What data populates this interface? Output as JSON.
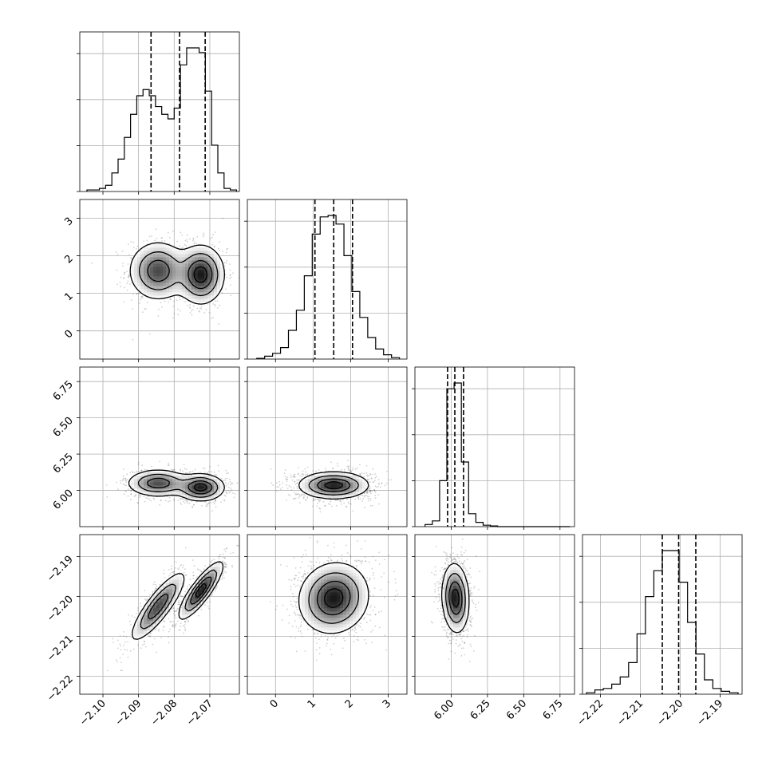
{
  "chart_data": {
    "type": "corner",
    "grid": true,
    "parameters": [
      {
        "range": [
          -2.1065,
          -2.0617
        ],
        "ticks": [
          -2.1,
          -2.09,
          -2.08,
          -2.07
        ],
        "tick_labels": [
          "−2.10",
          "−2.09",
          "−2.08",
          "−2.07"
        ],
        "quantiles": [
          -2.0865,
          -2.0785,
          -2.0713
        ],
        "histogram": [
          0.01,
          0.01,
          0.02,
          0.04,
          0.12,
          0.21,
          0.35,
          0.5,
          0.62,
          0.66,
          0.62,
          0.55,
          0.5,
          0.47,
          0.54,
          0.82,
          0.93,
          0.93,
          0.9,
          0.65,
          0.3,
          0.12,
          0.02,
          0.01
        ],
        "modes": [
          {
            "center": -2.0845,
            "sd": 0.0045,
            "weight": 0.45
          },
          {
            "center": -2.0725,
            "sd": 0.0035,
            "weight": 0.55
          }
        ]
      },
      {
        "range": [
          -0.75,
          3.5
        ],
        "ticks": [
          0,
          1,
          2,
          3
        ],
        "tick_labels": [
          "0",
          "1",
          "2",
          "3"
        ],
        "quantiles": [
          1.05,
          1.55,
          2.05
        ],
        "histogram": [
          0.005,
          0.02,
          0.04,
          0.08,
          0.2,
          0.34,
          0.58,
          0.87,
          0.99,
          1.0,
          0.94,
          0.72,
          0.47,
          0.29,
          0.15,
          0.07,
          0.03,
          0.01
        ],
        "modes": [
          {
            "center": 1.55,
            "sd": 0.48,
            "weight": 1
          }
        ]
      },
      {
        "range": [
          5.75,
          6.85
        ],
        "ticks": [
          6.0,
          6.25,
          6.5,
          6.75
        ],
        "tick_labels": [
          "6.00",
          "6.25",
          "6.50",
          "6.75"
        ],
        "quantiles": [
          5.975,
          6.025,
          6.085
        ],
        "histogram": [
          0.015,
          0.04,
          0.32,
          0.96,
          1.0,
          0.45,
          0.09,
          0.03,
          0.01,
          0.005,
          0,
          0,
          0,
          0,
          0,
          0,
          0,
          0,
          0,
          0
        ],
        "modes": [
          {
            "center": 6.03,
            "sd": 0.05,
            "weight": 1
          }
        ]
      },
      {
        "range": [
          -2.2245,
          -2.1845
        ],
        "ticks": [
          -2.22,
          -2.21,
          -2.2,
          -2.19
        ],
        "tick_labels": [
          "−2.22",
          "−2.21",
          "−2.20",
          "−2.19"
        ],
        "quantiles": [
          -2.2045,
          -2.2004,
          -2.1961
        ],
        "histogram": [
          0.01,
          0.03,
          0.04,
          0.07,
          0.12,
          0.22,
          0.42,
          0.68,
          0.86,
          1.0,
          1.0,
          0.78,
          0.5,
          0.28,
          0.1,
          0.04,
          0.02,
          0.01
        ],
        "modes": [
          {
            "center": -2.2004,
            "sd": 0.0042,
            "weight": 1
          }
        ]
      }
    ],
    "pairwise": [
      {
        "x": 0,
        "y": 1,
        "peaks": [
          {
            "x": -2.0845,
            "y": 1.6,
            "sx": 0.004,
            "sy": 0.38,
            "rho": 0,
            "w": 0.45
          },
          {
            "x": -2.0725,
            "y": 1.5,
            "sx": 0.0032,
            "sy": 0.38,
            "rho": 0,
            "w": 0.55
          }
        ]
      },
      {
        "x": 0,
        "y": 2,
        "peaks": [
          {
            "x": -2.0845,
            "y": 6.05,
            "sx": 0.0042,
            "sy": 0.045,
            "rho": 0,
            "w": 0.45
          },
          {
            "x": -2.0725,
            "y": 6.02,
            "sx": 0.0032,
            "sy": 0.045,
            "rho": 0,
            "w": 0.55
          }
        ]
      },
      {
        "x": 0,
        "y": 3,
        "peaks": [
          {
            "x": -2.0845,
            "y": -2.2025,
            "sx": 0.0037,
            "sy": 0.0042,
            "rho": 0.85,
            "w": 0.45
          },
          {
            "x": -2.0725,
            "y": -2.1985,
            "sx": 0.003,
            "sy": 0.0035,
            "rho": 0.85,
            "w": 0.55
          }
        ]
      },
      {
        "x": 1,
        "y": 2,
        "peaks": [
          {
            "x": 1.55,
            "y": 6.035,
            "sx": 0.45,
            "sy": 0.045,
            "rho": 0,
            "w": 1
          }
        ]
      },
      {
        "x": 1,
        "y": 3,
        "peaks": [
          {
            "x": 1.55,
            "y": -2.2004,
            "sx": 0.45,
            "sy": 0.0043,
            "rho": 0.08,
            "w": 1
          }
        ]
      },
      {
        "x": 2,
        "y": 3,
        "peaks": [
          {
            "x": 6.03,
            "y": -2.2004,
            "sx": 0.045,
            "sy": 0.0042,
            "rho": -0.1,
            "w": 1
          }
        ]
      }
    ]
  }
}
